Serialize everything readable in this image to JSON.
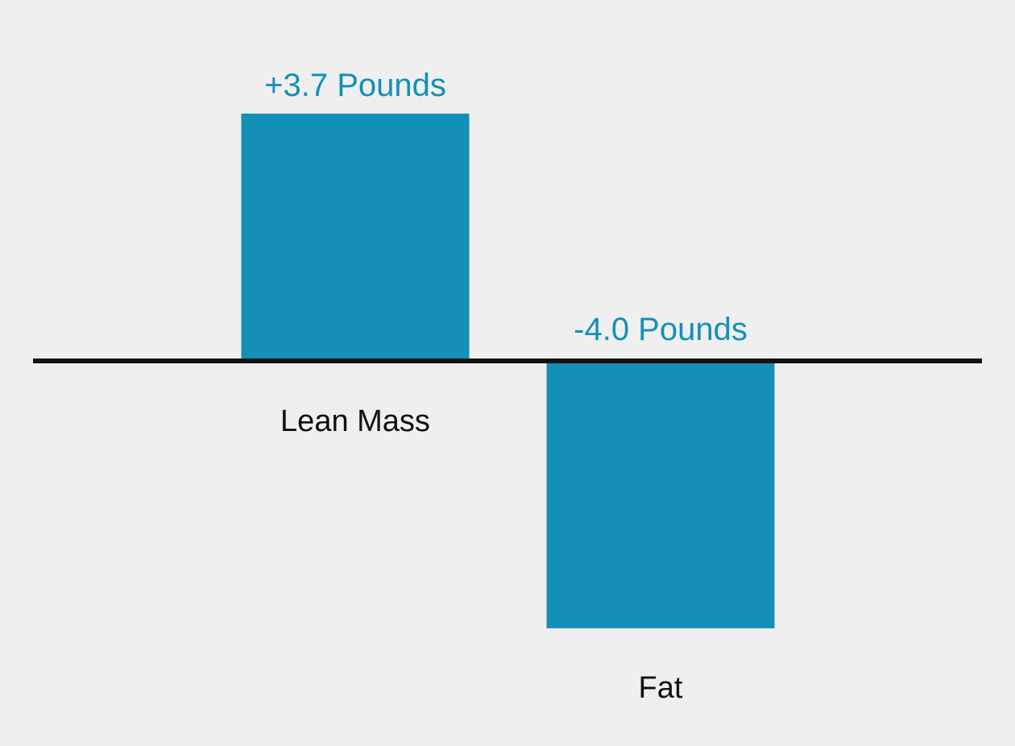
{
  "chart_data": {
    "type": "bar",
    "categories": [
      "Lean Mass",
      "Fat"
    ],
    "values": [
      3.7,
      -4.0
    ],
    "value_labels": [
      "+3.7 Pounds",
      "-4.0 Pounds"
    ],
    "unit": "Pounds",
    "title": "",
    "xlabel": "",
    "ylabel": "",
    "ylim": [
      -4.0,
      3.7
    ],
    "grid": false,
    "legend": "none",
    "colors": {
      "bar": "#148fb7",
      "value_label": "#148fb7",
      "category_label": "#111111",
      "axis": "#111111",
      "background": "#efefef"
    }
  }
}
